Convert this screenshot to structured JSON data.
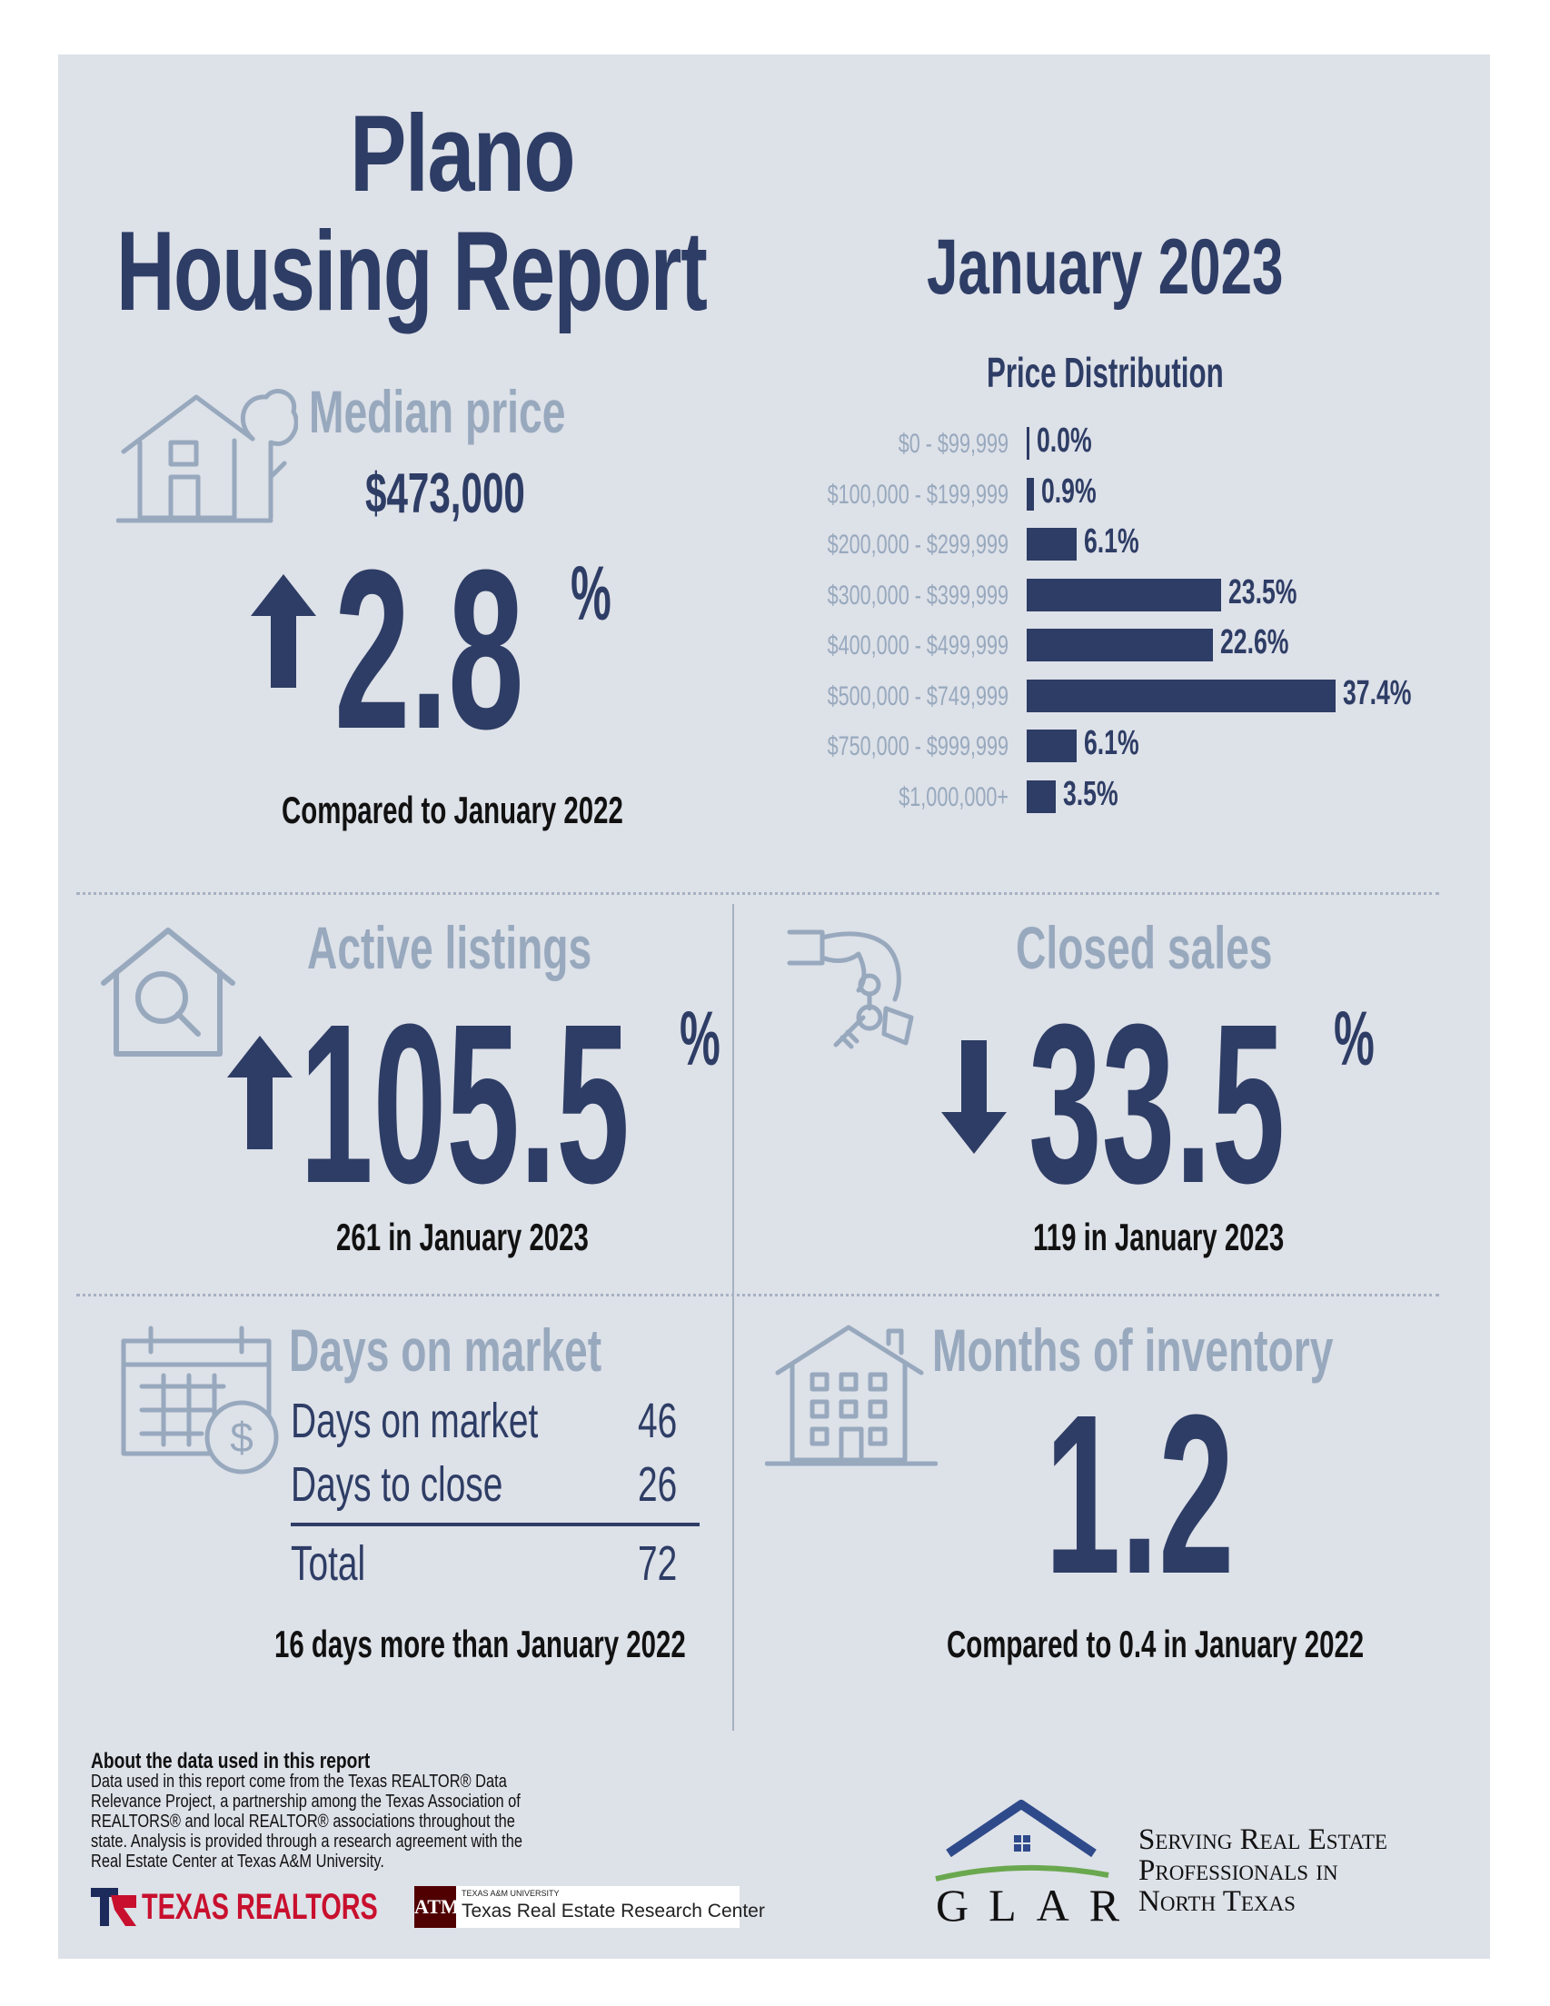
{
  "header": {
    "city": "Plano",
    "report_title": "Housing Report",
    "month": "January 2023"
  },
  "median_price": {
    "heading": "Median price",
    "value": "$473,000",
    "change": "2.8",
    "percent_symbol": "%",
    "direction": "up",
    "comparison": "Compared to January 2022",
    "icon": "house-tree-icon"
  },
  "price_distribution": {
    "title": "Price Distribution"
  },
  "chart_data": {
    "type": "bar",
    "title": "Price Distribution",
    "orientation": "horizontal",
    "categories": [
      "$0 - $99,999",
      "$100,000 - $199,999",
      "$200,000 - $299,999",
      "$300,000 - $399,999",
      "$400,000 - $499,999",
      "$500,000 - $749,999",
      "$750,000 - $999,999",
      "$1,000,000+"
    ],
    "values": [
      0.0,
      0.9,
      6.1,
      23.5,
      22.6,
      37.4,
      6.1,
      3.5
    ],
    "labels": [
      "0.0%",
      "0.9%",
      "6.1%",
      "23.5%",
      "22.6%",
      "37.4%",
      "6.1%",
      "3.5%"
    ],
    "unit": "%",
    "colors": {
      "bar": "#2e3d65",
      "category_label": "#98a9be"
    }
  },
  "active_listings": {
    "heading": "Active listings",
    "change": "105.5",
    "percent_symbol": "%",
    "direction": "up",
    "note": "261 in January 2023",
    "icon": "house-magnifier-icon"
  },
  "closed_sales": {
    "heading": "Closed sales",
    "change": "33.5",
    "percent_symbol": "%",
    "direction": "down",
    "note": "119 in January 2023",
    "icon": "hand-keys-icon"
  },
  "days_on_market": {
    "heading": "Days on market",
    "rows": [
      {
        "label": "Days on market",
        "value": "46"
      },
      {
        "label": "Days to close",
        "value": "26"
      }
    ],
    "total_label": "Total",
    "total_value": "72",
    "note": "16 days more than January 2022",
    "icon": "calendar-dollar-icon"
  },
  "months_inventory": {
    "heading": "Months of inventory",
    "value": "1.2",
    "note": "Compared to 0.4 in January 2022",
    "icon": "apartment-house-icon"
  },
  "footer": {
    "about_heading": "About the data used in this report",
    "about_text": "Data used in this report come from the Texas REALTOR® Data Relevance Project, a partnership among the Texas Association of REALTORS® and local REALTOR® associations throughout the state. Analysis is provided through a research agreement with the Real Estate Center at Texas A&M University.",
    "logo_texas_realtors": "TEXAS REALTORS",
    "logo_tamu_small": "TEXAS A&M UNIVERSITY",
    "logo_tamu": "Texas Real Estate Research Center",
    "glar_letters": "GLAR",
    "glar_tagline_1": "Serving Real Estate",
    "glar_tagline_2": "Professionals in",
    "glar_tagline_3": "North Texas"
  },
  "colors": {
    "background": "#dde1e8",
    "navy": "#2e3d65",
    "gray_heading": "#98a9be",
    "text_dark": "#111111"
  }
}
